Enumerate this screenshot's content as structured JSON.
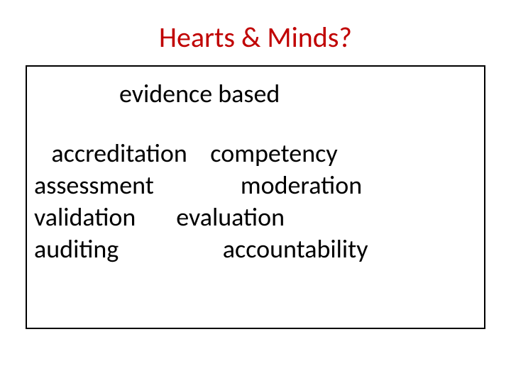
{
  "slide": {
    "title": "Hearts & Minds?",
    "title_color": "#c00000",
    "subtitle": "evidence based",
    "lines": [
      "   accreditation    competency",
      "assessment               moderation",
      "validation       evaluation",
      "auditing                  accountability"
    ],
    "box_border_color": "#000000",
    "background_color": "#ffffff",
    "body_text_color": "#000000",
    "title_fontsize": 40,
    "body_fontsize": 36
  }
}
